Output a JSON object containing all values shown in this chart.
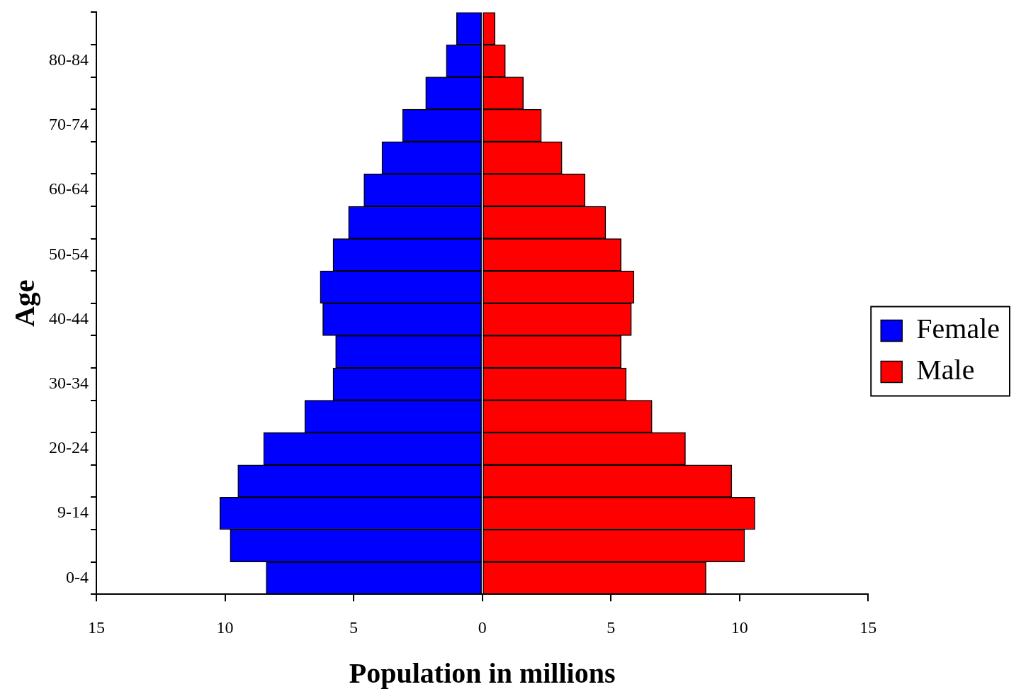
{
  "chart_data": {
    "type": "bar",
    "orientation": "horizontal",
    "stacked": true,
    "xlabel": "Population in millions",
    "ylabel": "Age",
    "categories": [
      null,
      "80-84",
      null,
      "70-74",
      null,
      "60-64",
      null,
      "50-54",
      null,
      "40-44",
      null,
      "30-34",
      null,
      "20-24",
      null,
      "9-14",
      null,
      "0-4"
    ],
    "series": [
      {
        "name": "Female",
        "color": "#0000ff",
        "values": [
          -1.0,
          -1.4,
          -2.2,
          -3.1,
          -3.9,
          -4.6,
          -5.2,
          -5.8,
          -6.3,
          -6.2,
          -5.7,
          -5.8,
          -6.9,
          -8.5,
          -9.5,
          -10.2,
          -9.8,
          -8.4
        ]
      },
      {
        "name": "Male",
        "color": "#ff0000",
        "values": [
          0.5,
          0.9,
          1.6,
          2.3,
          3.1,
          4.0,
          4.8,
          5.4,
          5.9,
          5.8,
          5.4,
          5.6,
          6.6,
          7.9,
          9.7,
          10.6,
          10.2,
          8.7
        ]
      }
    ],
    "xlim": [
      -15,
      15
    ],
    "xticks": [
      {
        "value": -15,
        "label": "15"
      },
      {
        "value": -10,
        "label": "10"
      },
      {
        "value": -5,
        "label": "5"
      },
      0,
      5,
      10,
      15
    ],
    "legend": "right"
  }
}
